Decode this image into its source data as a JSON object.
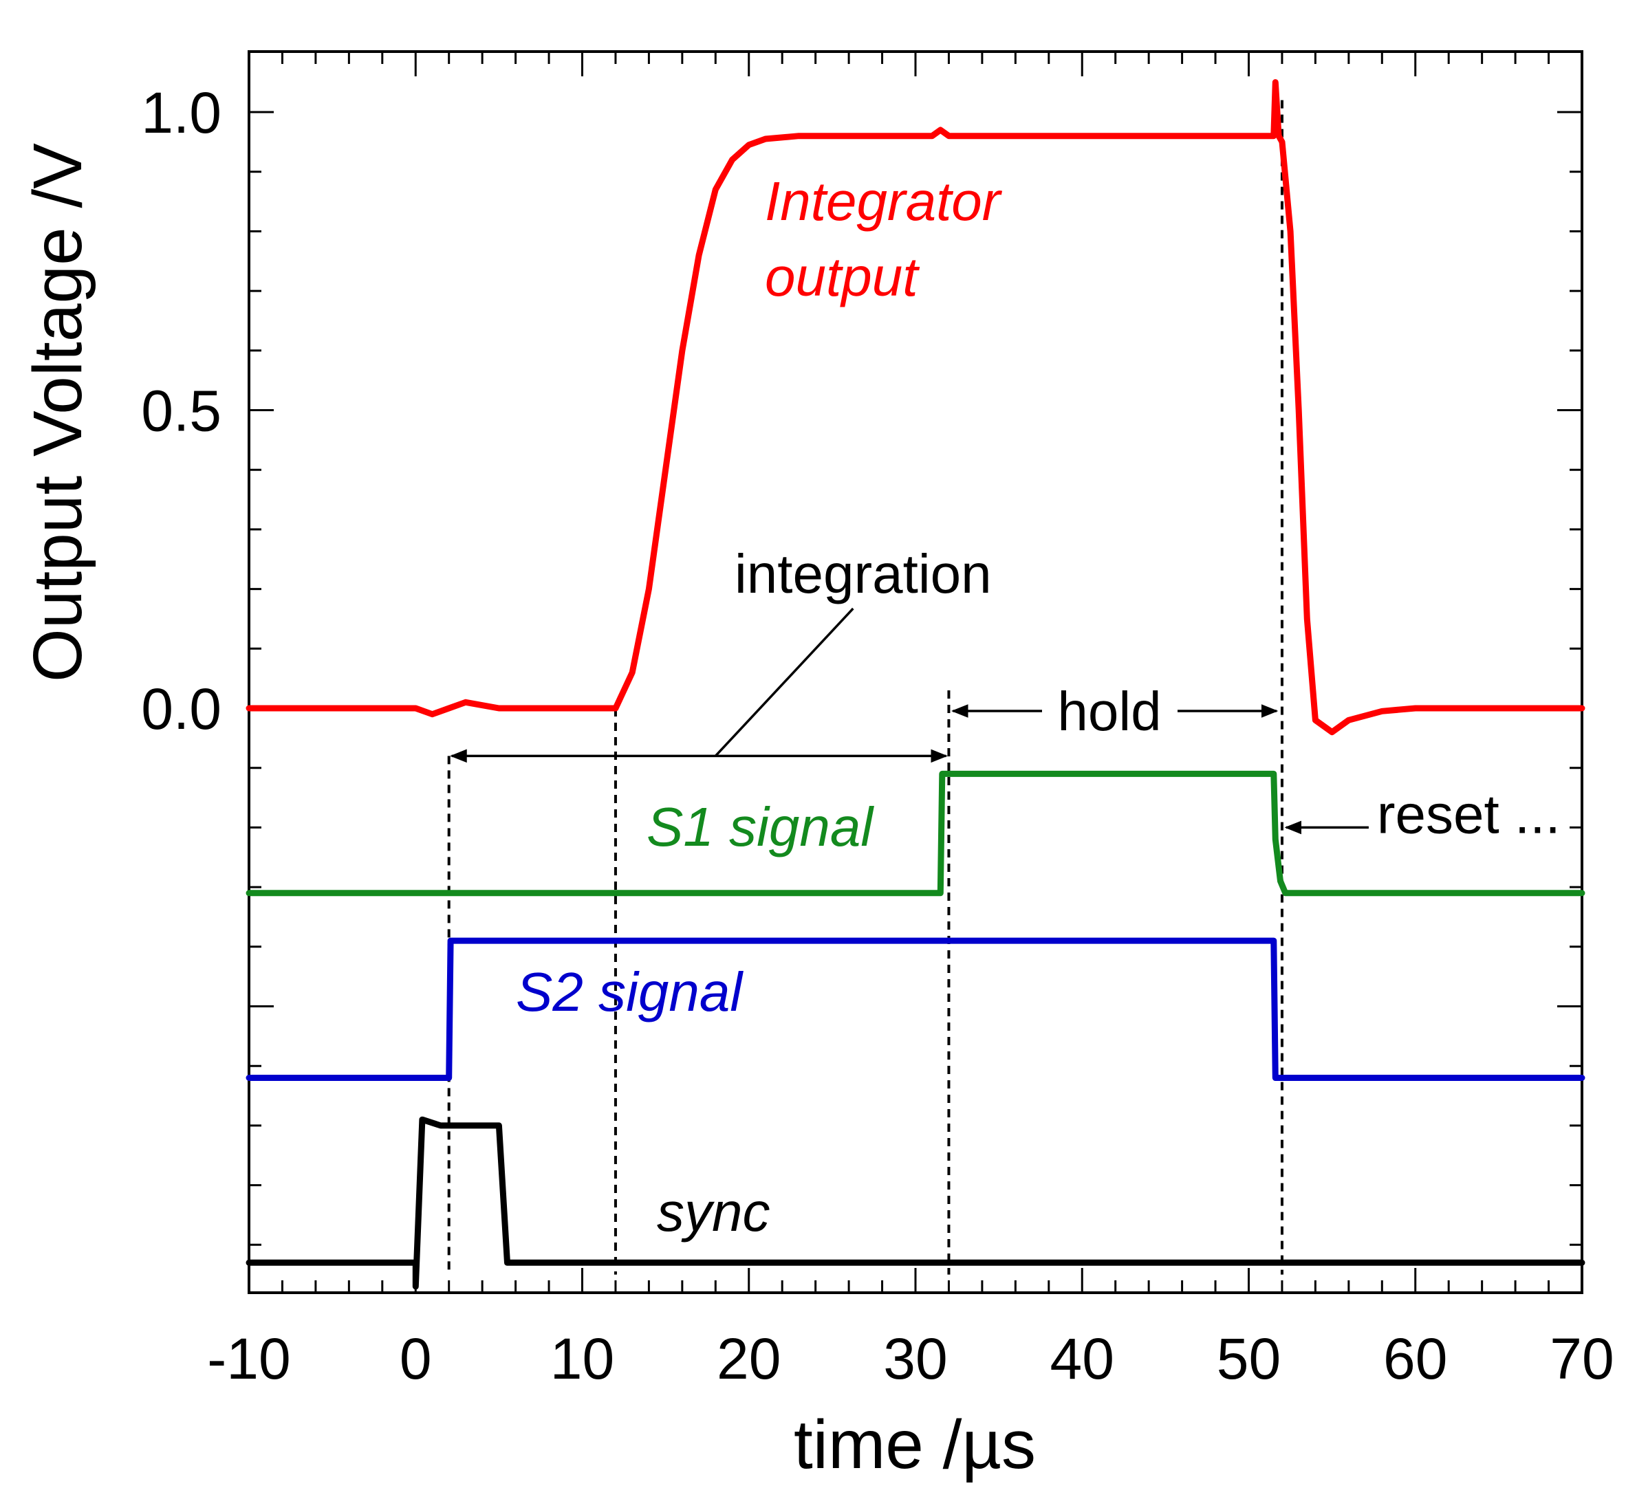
{
  "chart_data": {
    "type": "line",
    "xlabel": "time /µs",
    "ylabel": "Output Voltage /V",
    "xlim": [
      -10,
      70
    ],
    "ylim": [
      -0.95,
      1.1
    ],
    "xticks": [
      -10,
      0,
      10,
      20,
      30,
      40,
      50,
      60,
      70
    ],
    "xtick_labels": [
      "-10",
      "0",
      "10",
      "20",
      "30",
      "40",
      "50",
      "60",
      "70"
    ],
    "yticks": [
      0.0,
      0.5,
      1.0
    ],
    "ytick_labels": [
      "0.0",
      "0.5",
      "1.0"
    ],
    "grid": false,
    "colors": {
      "integrator": "#ff0000",
      "s1": "#138a1e",
      "s2": "#0000cc",
      "sync": "#000000",
      "annotation": "#000000"
    },
    "series": [
      {
        "name": "Integrator output",
        "label": "Integrator output",
        "label_lines": [
          "Integrator",
          "output"
        ],
        "color_key": "integrator",
        "x": [
          -10,
          0,
          1,
          2,
          3,
          5,
          10,
          12,
          13,
          14,
          15,
          16,
          17,
          18,
          19,
          20,
          21,
          23,
          25,
          30,
          31,
          31.5,
          32,
          40,
          45,
          48,
          50,
          51.5,
          51.6,
          51.8,
          52,
          52.5,
          53,
          53.5,
          54,
          55,
          56,
          58,
          60,
          65,
          70
        ],
        "y": [
          0.0,
          0.0,
          -0.01,
          0.0,
          0.01,
          0.0,
          0.0,
          0.0,
          0.06,
          0.2,
          0.4,
          0.6,
          0.76,
          0.87,
          0.92,
          0.945,
          0.955,
          0.96,
          0.96,
          0.96,
          0.96,
          0.97,
          0.96,
          0.96,
          0.96,
          0.96,
          0.96,
          0.96,
          1.05,
          0.96,
          0.95,
          0.8,
          0.5,
          0.15,
          -0.02,
          -0.04,
          -0.02,
          -0.005,
          0.0,
          0.0,
          0.0
        ]
      },
      {
        "name": "S1 signal",
        "label": "S1 signal",
        "color_key": "s1",
        "x": [
          -10,
          31.5,
          31.6,
          51.5,
          51.6,
          51.9,
          52.2,
          52.6,
          70
        ],
        "y": [
          -0.31,
          -0.31,
          -0.11,
          -0.11,
          -0.22,
          -0.29,
          -0.31,
          -0.31,
          -0.31
        ]
      },
      {
        "name": "S2 signal",
        "label": "S2 signal",
        "color_key": "s2",
        "x": [
          -10,
          2,
          2.1,
          51.5,
          51.6,
          70
        ],
        "y": [
          -0.62,
          -0.62,
          -0.39,
          -0.39,
          -0.62,
          -0.62
        ]
      },
      {
        "name": "sync",
        "label": "sync",
        "color_key": "sync",
        "x": [
          -10,
          0,
          0,
          0.4,
          1.5,
          5,
          5.5,
          70
        ],
        "y": [
          -0.93,
          -0.93,
          -0.97,
          -0.69,
          -0.7,
          -0.7,
          -0.93,
          -0.93
        ]
      }
    ],
    "markers": [
      {
        "name": "integration-start",
        "x": 2
      },
      {
        "name": "integration-mid",
        "x": 12
      },
      {
        "name": "hold-start",
        "x": 32
      },
      {
        "name": "reset",
        "x": 52
      }
    ],
    "annotations": {
      "integration": {
        "text": "integration",
        "x_from": 2,
        "x_to": 32,
        "y": -0.08,
        "text_x": 19,
        "text_y": 0.2,
        "leader_x": 18,
        "leader_y": -0.08
      },
      "hold": {
        "text": "hold",
        "x_from": 32,
        "x_to": 52,
        "y": 0.0
      },
      "reset": {
        "text": "reset ...",
        "arrow_to_x": 52,
        "arrow_from_x": 57.2,
        "y": -0.2
      }
    }
  }
}
